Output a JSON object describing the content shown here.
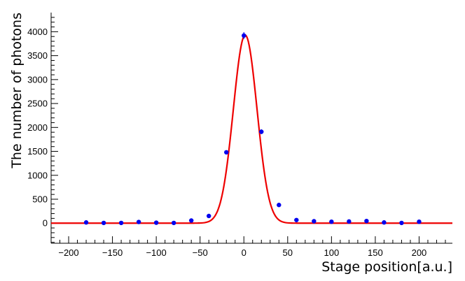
{
  "chart_data": {
    "type": "scatter",
    "title": "",
    "xlabel": "Stage position[a.u.]",
    "ylabel": "The number of photons",
    "xlim": [
      -220,
      238
    ],
    "ylim": [
      -420,
      4400
    ],
    "x_ticks": [
      -200,
      -150,
      -100,
      -50,
      0,
      50,
      100,
      150,
      200
    ],
    "y_ticks": [
      0,
      500,
      1000,
      1500,
      2000,
      2500,
      3000,
      3500,
      4000
    ],
    "grid": false,
    "legend": "none",
    "series": [
      {
        "marker_color": "#0000ee",
        "points": [
          {
            "x": -180,
            "y": 15,
            "err": 10
          },
          {
            "x": -160,
            "y": 5,
            "err": 10
          },
          {
            "x": -140,
            "y": 5,
            "err": 10
          },
          {
            "x": -120,
            "y": 25,
            "err": 10
          },
          {
            "x": -100,
            "y": 10,
            "err": 10
          },
          {
            "x": -80,
            "y": 5,
            "err": 10
          },
          {
            "x": -60,
            "y": 55,
            "err": 12
          },
          {
            "x": -40,
            "y": 150,
            "err": 15
          },
          {
            "x": -20,
            "y": 1480,
            "err": 45
          },
          {
            "x": 0,
            "y": 3920,
            "err": 70
          },
          {
            "x": 20,
            "y": 1910,
            "err": 50
          },
          {
            "x": 40,
            "y": 380,
            "err": 20
          },
          {
            "x": 60,
            "y": 65,
            "err": 12
          },
          {
            "x": 80,
            "y": 40,
            "err": 10
          },
          {
            "x": 100,
            "y": 30,
            "err": 10
          },
          {
            "x": 120,
            "y": 35,
            "err": 10
          },
          {
            "x": 140,
            "y": 45,
            "err": 10
          },
          {
            "x": 160,
            "y": 15,
            "err": 10
          },
          {
            "x": 180,
            "y": 5,
            "err": 10
          },
          {
            "x": 200,
            "y": 30,
            "err": 10
          }
        ]
      }
    ],
    "fit": {
      "type": "gaussian",
      "amplitude": 3930,
      "mean": 1.5,
      "sigma": 13.5,
      "x_range": [
        -220,
        238
      ],
      "color": "#ee0000"
    }
  }
}
